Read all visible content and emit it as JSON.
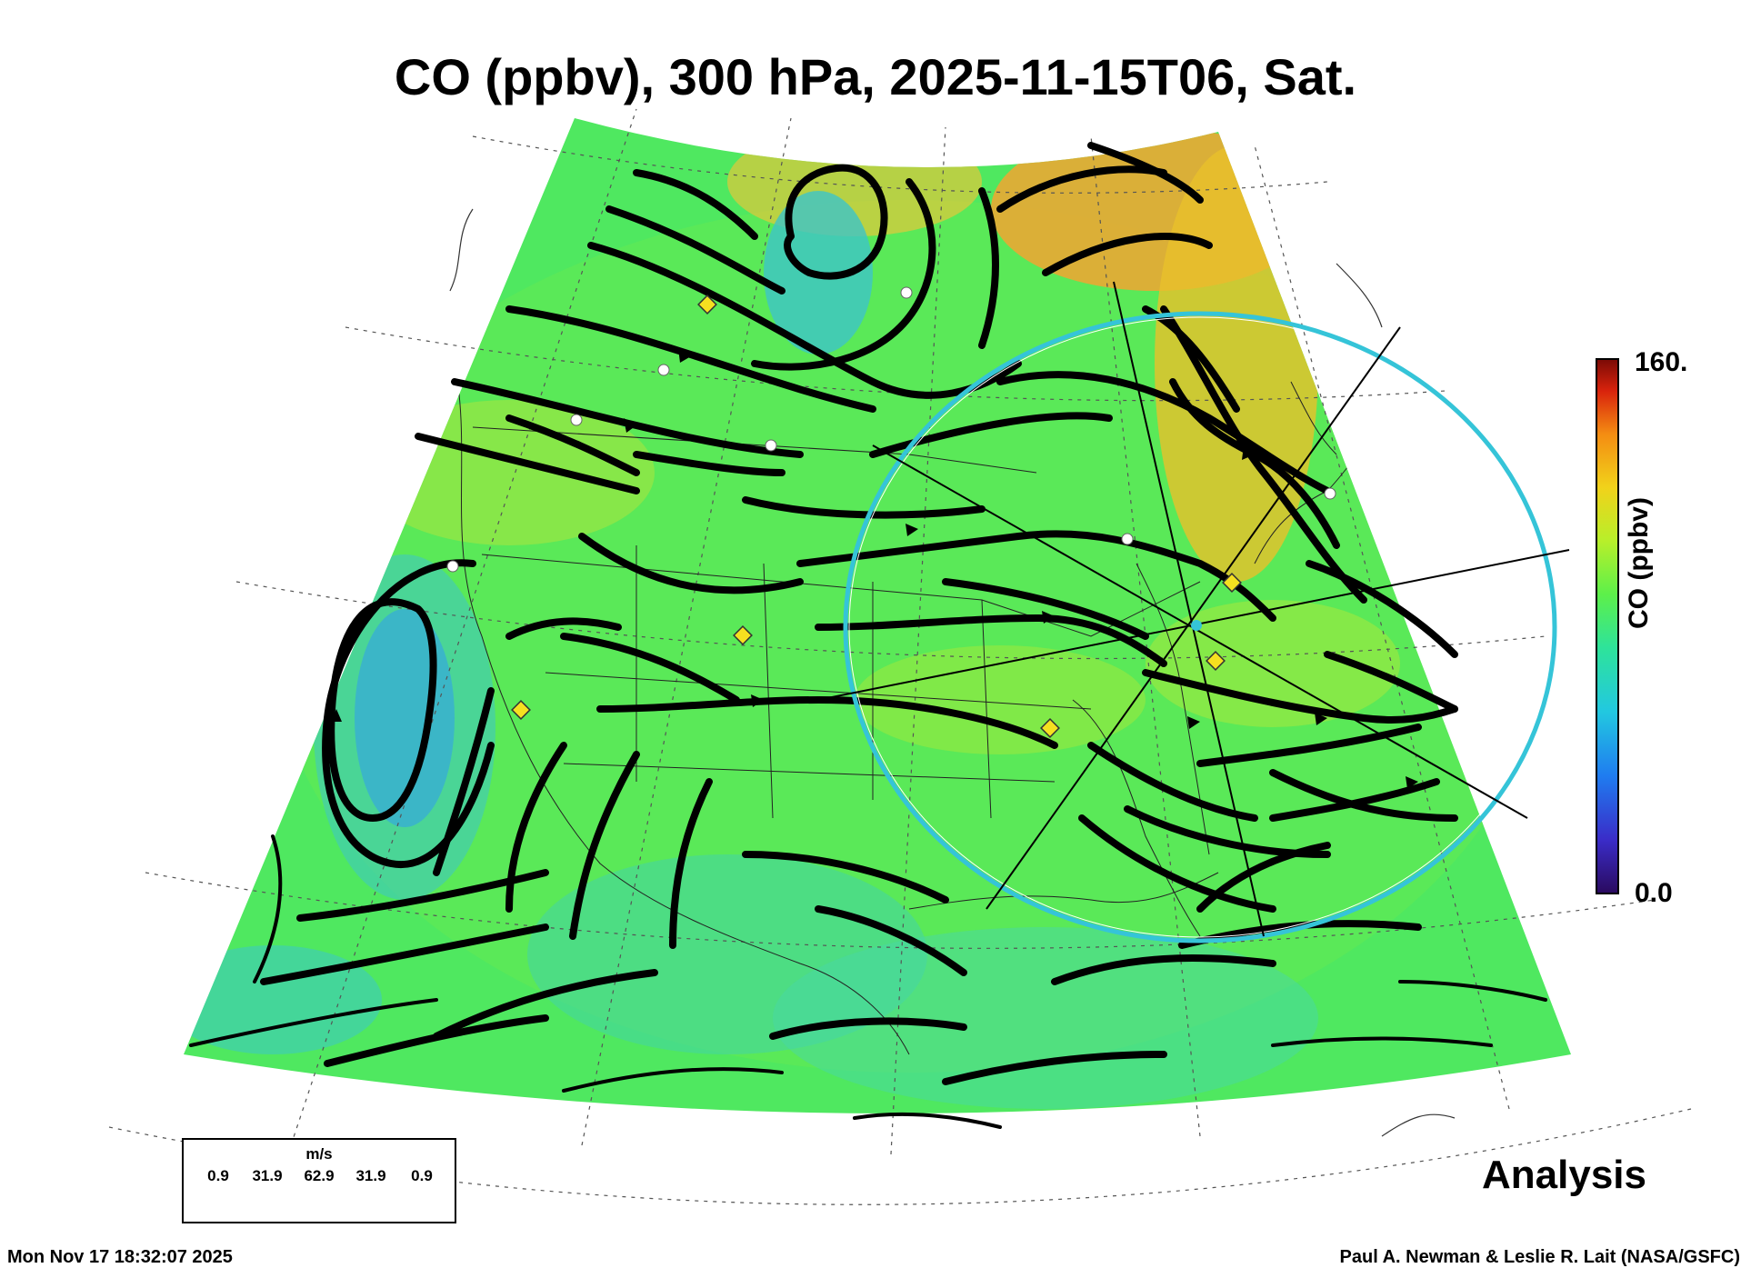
{
  "title": "CO (ppbv), 300 hPa, 2025-11-15T06, Sat.",
  "colorbar": {
    "max_label": "160.",
    "min_label": "0.0",
    "title": "CO (ppbv)",
    "stops": [
      "#2a0a5e",
      "#3a2cc8",
      "#1f7cf0",
      "#22c8e0",
      "#2ee39a",
      "#5df04a",
      "#b8ef2a",
      "#f1d21a",
      "#f48c12",
      "#d9230c",
      "#7a0a06"
    ]
  },
  "legend": {
    "unit": "m/s",
    "ticks": [
      "0.9",
      "31.9",
      "62.9",
      "31.9",
      "0.9"
    ]
  },
  "product_label": "Analysis",
  "timestamp": "Mon Nov 17 18:32:07 2025",
  "credit": "Paul A. Newman & Leslie R. Lait (NASA/GSFC)",
  "colors": {
    "field_base": "#4fe860",
    "field_high": "#f2a431",
    "field_low": "#35b4d8",
    "streamline": "#000000",
    "ring": "#35c4d8",
    "site_marker": "#f5e020"
  }
}
